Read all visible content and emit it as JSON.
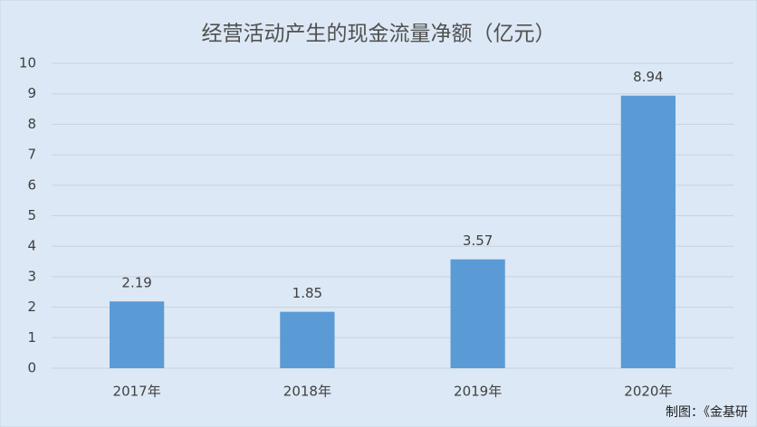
{
  "chart_data": {
    "type": "bar",
    "title": "经营活动产生的现金流量净额（亿元）",
    "categories": [
      "2017年",
      "2018年",
      "2019年",
      "2020年"
    ],
    "values": [
      2.19,
      1.85,
      3.57,
      8.94
    ],
    "color": "#5b9bd5",
    "ylim": [
      0,
      10
    ],
    "yticks": [
      0,
      1,
      2,
      3,
      4,
      5,
      6,
      7,
      8,
      9,
      10
    ],
    "grid": true,
    "note": "制图：《金基研"
  }
}
